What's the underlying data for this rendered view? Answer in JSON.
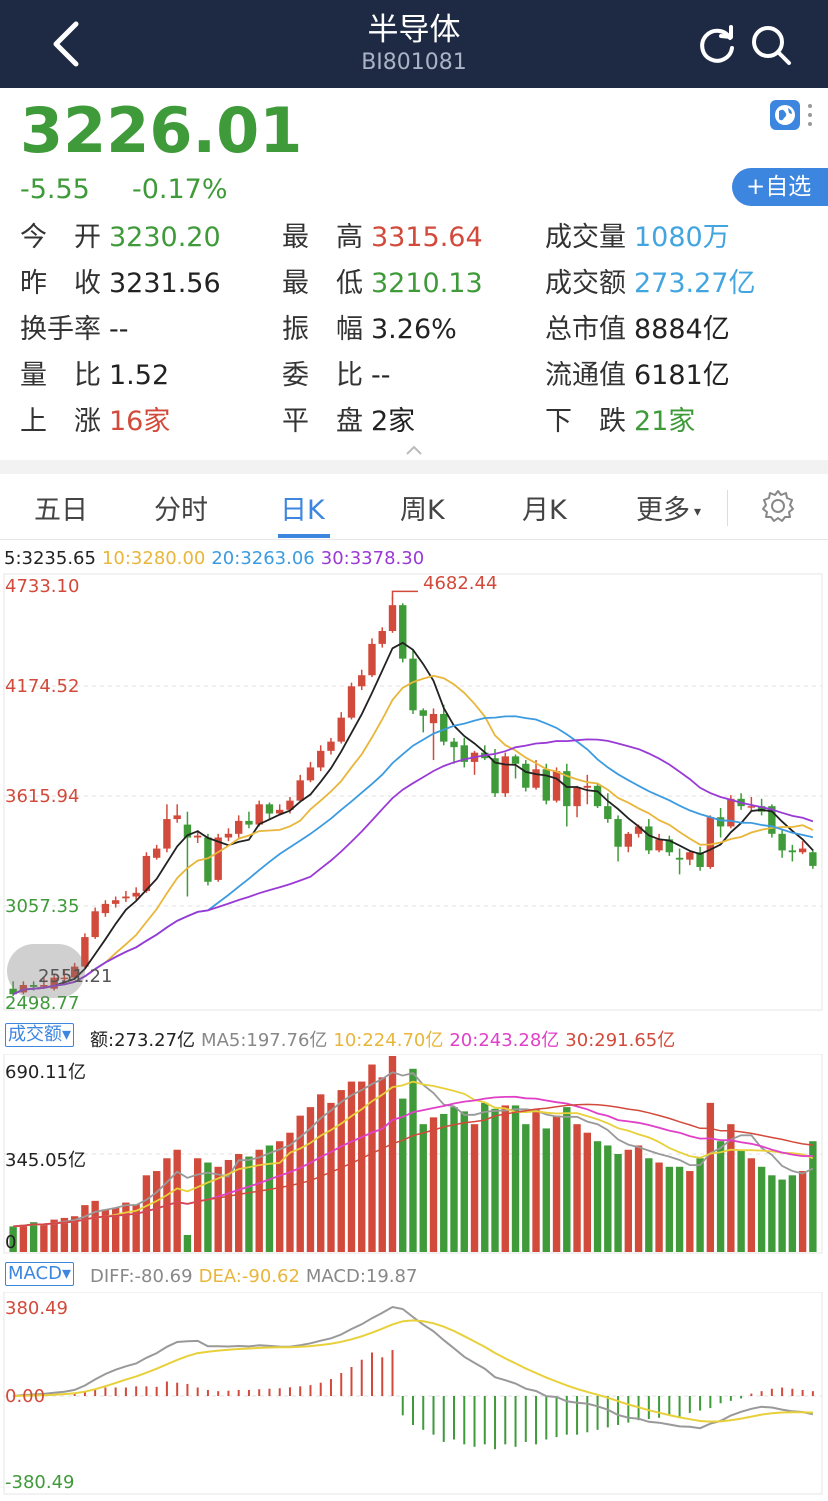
{
  "header": {
    "title": "半导体",
    "code": "BI801081"
  },
  "quote": {
    "price": "3226.01",
    "change": "-5.55",
    "change_pct": "-0.17%",
    "watch_label": "自选",
    "rows": [
      [
        {
          "label": "今　开",
          "value": "3230.20",
          "color": "green"
        },
        {
          "label": "最　高",
          "value": "3315.64",
          "color": "red"
        },
        {
          "label": "成交量",
          "value": "1080万",
          "color": "blue"
        }
      ],
      [
        {
          "label": "昨　收",
          "value": "3231.56",
          "color": "dark"
        },
        {
          "label": "最　低",
          "value": "3210.13",
          "color": "green"
        },
        {
          "label": "成交额",
          "value": "273.27亿",
          "color": "blue"
        }
      ],
      [
        {
          "label": "换手率",
          "value": "--",
          "color": "dark"
        },
        {
          "label": "振　幅",
          "value": "3.26%",
          "color": "dark"
        },
        {
          "label": "总市值",
          "value": "8884亿",
          "color": "dark"
        }
      ],
      [
        {
          "label": "量　比",
          "value": "1.52",
          "color": "dark"
        },
        {
          "label": "委　比",
          "value": "--",
          "color": "dark"
        },
        {
          "label": "流通值",
          "value": "6181亿",
          "color": "dark"
        }
      ],
      [
        {
          "label": "上　涨",
          "value": "16家",
          "color": "red"
        },
        {
          "label": "平　盘",
          "value": "2家",
          "color": "dark"
        },
        {
          "label": "下　跌",
          "value": "21家",
          "color": "green"
        }
      ]
    ]
  },
  "tabs": [
    "五日",
    "分时",
    "日K",
    "周K",
    "月K",
    "更多"
  ],
  "active_tab": "日K",
  "kline": {
    "ma_legend": [
      {
        "text": "5:3235.65",
        "color": "#222222"
      },
      {
        "text": "10:3280.00",
        "color": "#e8b63a"
      },
      {
        "text": "20:3263.06",
        "color": "#3c9be0"
      },
      {
        "text": "30:3378.30",
        "color": "#9a3ad6"
      }
    ],
    "y_labels": [
      "4733.10",
      "4174.52",
      "3615.94",
      "3057.35",
      "2498.77"
    ],
    "high_marker": "4682.44",
    "low_marker": "2551.21"
  },
  "volume": {
    "indicator": "成交额",
    "legend": [
      {
        "text": "额:273.27亿",
        "color": "#222222"
      },
      {
        "text": "MA5:197.76亿",
        "color": "#888888"
      },
      {
        "text": "10:224.70亿",
        "color": "#e8b63a"
      },
      {
        "text": "20:243.28亿",
        "color": "#e040c8"
      },
      {
        "text": "30:291.65亿",
        "color": "#d24a3b"
      }
    ],
    "y_labels": [
      "690.11亿",
      "345.05亿",
      "0"
    ]
  },
  "macd": {
    "indicator": "MACD",
    "legend": [
      {
        "text": "DIFF:-80.69",
        "color": "#888888"
      },
      {
        "text": "DEA:-90.62",
        "color": "#e8b63a"
      },
      {
        "text": "MACD:19.87",
        "color": "#888888"
      }
    ],
    "y_labels": [
      "380.49",
      "0.00",
      "-380.49"
    ]
  },
  "colors": {
    "up": "#d24a3b",
    "down": "#3f9a3a",
    "accent": "#3c86e0",
    "header_bg": "#1e2a44"
  },
  "chart_data": {
    "type": "candlestick",
    "ohlc": [
      [
        2560,
        2530,
        2600,
        2520
      ],
      [
        2540,
        2580,
        2600,
        2530
      ],
      [
        2580,
        2570,
        2600,
        2550
      ],
      [
        2570,
        2580,
        2620,
        2560
      ],
      [
        2560,
        2620,
        2640,
        2550
      ],
      [
        2620,
        2620,
        2660,
        2600
      ],
      [
        2620,
        2680,
        2700,
        2610
      ],
      [
        2680,
        2840,
        2860,
        2670
      ],
      [
        2840,
        2980,
        3000,
        2830
      ],
      [
        2970,
        3020,
        3040,
        2950
      ],
      [
        3020,
        3040,
        3060,
        3000
      ],
      [
        3050,
        3060,
        3090,
        3030
      ],
      [
        3060,
        3080,
        3110,
        3040
      ],
      [
        3090,
        3280,
        3300,
        3080
      ],
      [
        3270,
        3320,
        3340,
        3260
      ],
      [
        3320,
        3480,
        3560,
        3300
      ],
      [
        3480,
        3500,
        3560,
        3460
      ],
      [
        3450,
        3380,
        3520,
        3060
      ],
      [
        3380,
        3390,
        3420,
        3350
      ],
      [
        3380,
        3140,
        3400,
        3120
      ],
      [
        3150,
        3380,
        3400,
        3140
      ],
      [
        3380,
        3400,
        3430,
        3360
      ],
      [
        3400,
        3470,
        3500,
        3380
      ],
      [
        3470,
        3450,
        3520,
        3430
      ],
      [
        3450,
        3560,
        3580,
        3440
      ],
      [
        3560,
        3510,
        3570,
        3480
      ],
      [
        3510,
        3530,
        3560,
        3500
      ],
      [
        3530,
        3580,
        3600,
        3510
      ],
      [
        3580,
        3690,
        3720,
        3570
      ],
      [
        3690,
        3760,
        3790,
        3680
      ],
      [
        3760,
        3850,
        3880,
        3740
      ],
      [
        3850,
        3900,
        3920,
        3830
      ],
      [
        3900,
        4030,
        4060,
        3890
      ],
      [
        4030,
        4200,
        4220,
        4020
      ],
      [
        4200,
        4260,
        4290,
        4180
      ],
      [
        4260,
        4430,
        4460,
        4250
      ],
      [
        4430,
        4500,
        4520,
        4410
      ],
      [
        4500,
        4640,
        4682,
        4490
      ],
      [
        4640,
        4350,
        4650,
        4330
      ],
      [
        4350,
        4070,
        4400,
        4050
      ],
      [
        4070,
        4040,
        4080,
        3950
      ],
      [
        4000,
        4050,
        4080,
        3800
      ],
      [
        4050,
        3900,
        4100,
        3880
      ],
      [
        3900,
        3870,
        3920,
        3780
      ],
      [
        3880,
        3790,
        3920,
        3760
      ],
      [
        3790,
        3840,
        3850,
        3720
      ],
      [
        3840,
        3810,
        3880,
        3800
      ],
      [
        3810,
        3620,
        3860,
        3600
      ],
      [
        3620,
        3820,
        3840,
        3600
      ],
      [
        3820,
        3780,
        3830,
        3700
      ],
      [
        3780,
        3650,
        3800,
        3630
      ],
      [
        3650,
        3750,
        3800,
        3640
      ],
      [
        3750,
        3580,
        3780,
        3560
      ],
      [
        3580,
        3740,
        3760,
        3570
      ],
      [
        3740,
        3550,
        3780,
        3440
      ],
      [
        3550,
        3650,
        3660,
        3490
      ],
      [
        3650,
        3660,
        3720,
        3560
      ],
      [
        3660,
        3550,
        3670,
        3540
      ],
      [
        3550,
        3480,
        3620,
        3460
      ],
      [
        3480,
        3330,
        3500,
        3250
      ],
      [
        3330,
        3400,
        3410,
        3300
      ],
      [
        3400,
        3440,
        3450,
        3380
      ],
      [
        3440,
        3310,
        3480,
        3290
      ],
      [
        3310,
        3370,
        3400,
        3300
      ],
      [
        3370,
        3300,
        3390,
        3280
      ],
      [
        3270,
        3260,
        3320,
        3180
      ],
      [
        3260,
        3300,
        3310,
        3230
      ],
      [
        3300,
        3220,
        3330,
        3200
      ],
      [
        3220,
        3490,
        3500,
        3210
      ],
      [
        3490,
        3440,
        3540,
        3380
      ],
      [
        3440,
        3590,
        3610,
        3430
      ],
      [
        3590,
        3550,
        3620,
        3530
      ],
      [
        3550,
        3550,
        3600,
        3520
      ],
      [
        3550,
        3520,
        3590,
        3500
      ],
      [
        3550,
        3400,
        3560,
        3380
      ],
      [
        3400,
        3310,
        3420,
        3270
      ],
      [
        3310,
        3300,
        3340,
        3250
      ],
      [
        3300,
        3320,
        3360,
        3290
      ],
      [
        3300,
        3226,
        3316,
        3210
      ]
    ],
    "volume": [
      30,
      32,
      35,
      33,
      38,
      40,
      42,
      55,
      60,
      50,
      52,
      58,
      56,
      90,
      95,
      110,
      120,
      20,
      110,
      105,
      100,
      108,
      115,
      112,
      120,
      125,
      130,
      140,
      160,
      170,
      185,
      175,
      190,
      200,
      200,
      220,
      205,
      230,
      180,
      215,
      150,
      158,
      162,
      170,
      165,
      150,
      175,
      168,
      172,
      172,
      150,
      168,
      145,
      160,
      170,
      150,
      140,
      130,
      125,
      115,
      120,
      125,
      110,
      105,
      100,
      100,
      95,
      110,
      175,
      130,
      150,
      120,
      110,
      100,
      90,
      85,
      90,
      95,
      130
    ],
    "macd_hist": [
      0,
      0,
      0,
      0,
      0,
      0,
      10,
      20,
      30,
      35,
      35,
      35,
      40,
      40,
      38,
      60,
      55,
      50,
      35,
      25,
      20,
      22,
      25,
      25,
      28,
      30,
      32,
      36,
      40,
      45,
      55,
      70,
      95,
      120,
      150,
      180,
      160,
      190,
      -80,
      -120,
      -140,
      -160,
      -190,
      -180,
      -200,
      -210,
      -200,
      -220,
      -200,
      -210,
      -190,
      -200,
      -180,
      -170,
      -160,
      -160,
      -150,
      -140,
      -130,
      -120,
      -110,
      -100,
      -95,
      -90,
      -80,
      -85,
      -70,
      -60,
      -50,
      -30,
      -20,
      -10,
      10,
      20,
      30,
      35,
      30,
      25,
      20
    ]
  }
}
